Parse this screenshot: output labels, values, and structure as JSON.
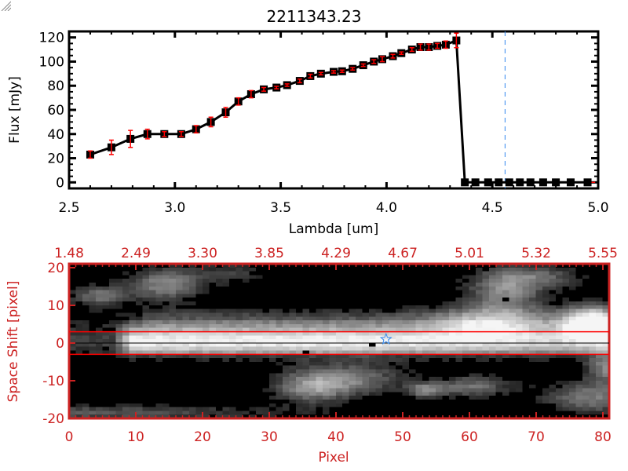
{
  "chart_data": [
    {
      "type": "line",
      "title": "2211343.23",
      "xlabel": "Lambda [um]",
      "ylabel": "Flux [mJy]",
      "xlim": [
        2.5,
        5.0
      ],
      "ylim": [
        -5,
        125
      ],
      "xticks": [
        "2.5",
        "3.0",
        "3.5",
        "4.0",
        "4.5",
        "5.0"
      ],
      "yticks": [
        "0",
        "20",
        "40",
        "60",
        "80",
        "100",
        "120"
      ],
      "series": [
        {
          "name": "flux",
          "x": [
            2.6,
            2.7,
            2.79,
            2.87,
            2.95,
            3.03,
            3.1,
            3.17,
            3.24,
            3.3,
            3.36,
            3.42,
            3.48,
            3.53,
            3.59,
            3.64,
            3.69,
            3.75,
            3.79,
            3.84,
            3.89,
            3.94,
            3.98,
            4.03,
            4.07,
            4.12,
            4.16,
            4.2,
            4.24,
            4.28,
            4.33,
            4.37,
            4.42,
            4.48,
            4.53,
            4.58,
            4.63,
            4.68,
            4.74,
            4.8,
            4.87,
            4.95
          ],
          "y": [
            23,
            29,
            36,
            40,
            40,
            40,
            44,
            50,
            58,
            67,
            73,
            77,
            78.5,
            80.5,
            84,
            88,
            90,
            91.5,
            92,
            94,
            97,
            100,
            102,
            104.5,
            107,
            110,
            112,
            112,
            113,
            114,
            117.5,
            0,
            0,
            0,
            0,
            0,
            0,
            0,
            0,
            0,
            0,
            0
          ],
          "err": [
            3,
            6,
            7,
            4,
            2,
            2,
            3,
            4,
            4,
            3,
            3,
            1.5,
            1,
            1,
            1.5,
            1.5,
            1,
            1,
            1,
            1,
            1,
            1.5,
            2,
            1.5,
            1,
            1.5,
            2.5,
            2.5,
            2,
            3,
            6,
            0,
            0,
            0,
            0,
            0,
            0,
            0,
            0,
            0,
            0,
            0
          ]
        }
      ],
      "reference_lines": {
        "vertical_lambda": 4.56,
        "zero_level_from": 4.37
      }
    },
    {
      "type": "heatmap",
      "xlabel": "Pixel",
      "ylabel": "Space Shift [pixel]",
      "xlim": [
        0,
        81
      ],
      "ylim": [
        -21,
        21
      ],
      "xticks": [
        "0",
        "10",
        "20",
        "30",
        "40",
        "50",
        "60",
        "70",
        "80"
      ],
      "yticks": [
        "-20",
        "-10",
        "0",
        "10",
        "20"
      ],
      "top_ticks": [
        "1.48",
        "2.49",
        "3.30",
        "3.85",
        "4.29",
        "4.67",
        "5.01",
        "5.32",
        "5.55"
      ],
      "extraction_aperture": [
        -3,
        3
      ],
      "center_line": 0,
      "star_marker": {
        "pixel": 47.5,
        "shift": 1
      },
      "bad_pixels": [
        {
          "pixel": 35.5,
          "shift": -3
        },
        {
          "pixel": 45.5,
          "shift": -1
        },
        {
          "pixel": 65.5,
          "shift": 11
        }
      ]
    }
  ],
  "colors": {
    "axis_red": "#cc2222",
    "line_red": "#ff0000",
    "marker_blue": "#3388ee"
  }
}
